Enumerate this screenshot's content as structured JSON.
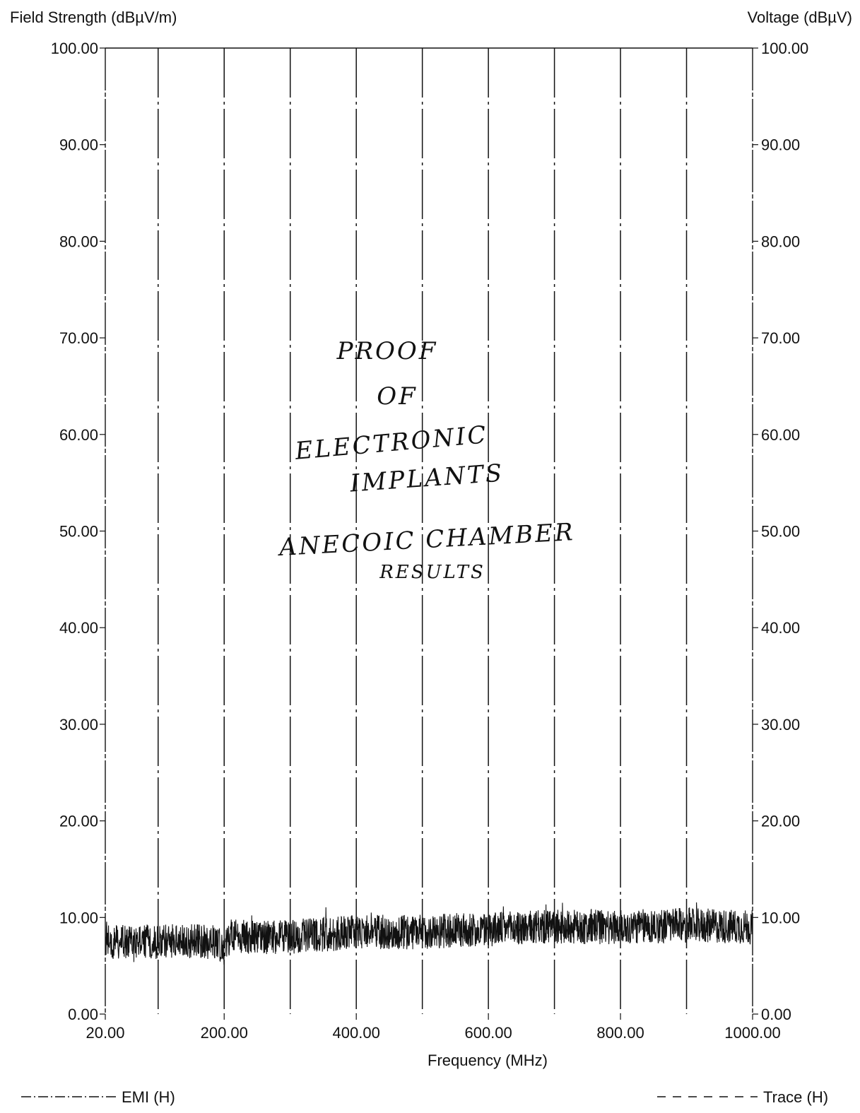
{
  "chart_data": {
    "type": "line",
    "ylabel_left": "Field Strength (dBµV/m)",
    "ylabel_right": "Voltage (dBµV)",
    "xlabel": "Frequency (MHz)",
    "xlim": [
      20,
      1000
    ],
    "ylim": [
      0,
      100
    ],
    "x_ticks": [
      20,
      200,
      400,
      600,
      800,
      1000
    ],
    "x_tick_labels": [
      "20.00",
      "200.00",
      "400.00",
      "600.00",
      "800.00",
      "1000.00"
    ],
    "y_ticks": [
      0,
      10,
      20,
      30,
      40,
      50,
      60,
      70,
      80,
      90,
      100
    ],
    "y_tick_labels": [
      "0.00",
      "10.00",
      "20.00",
      "30.00",
      "40.00",
      "50.00",
      "60.00",
      "70.00",
      "80.00",
      "90.00",
      "100.00"
    ],
    "grid_lines_x": [
      100,
      200,
      300,
      400,
      500,
      600,
      700,
      800,
      900
    ],
    "grid": true,
    "legend": [
      {
        "name": "EMI (H)",
        "style": "dash-dot",
        "placement": "bottom-left"
      },
      {
        "name": "Trace (H)",
        "style": "dashed",
        "placement": "bottom-right"
      }
    ],
    "series": [
      {
        "name": "Trace (H)",
        "x": [
          20,
          100,
          190,
          200,
          210,
          300,
          400,
          500,
          600,
          700,
          800,
          900,
          1000
        ],
        "y": [
          7.5,
          7.5,
          7.5,
          6.5,
          8.0,
          8.0,
          8.5,
          8.5,
          8.8,
          9.0,
          9.0,
          9.2,
          9.0
        ],
        "noise_amplitude": 1.8
      }
    ],
    "annotation": [
      "PROOF",
      "OF",
      "ELECTRONIC",
      "IMPLANTS",
      "ANECOIC CHAMBER",
      "RESULTS"
    ],
    "colors": {
      "ink": "#111111",
      "background": "#ffffff"
    }
  }
}
